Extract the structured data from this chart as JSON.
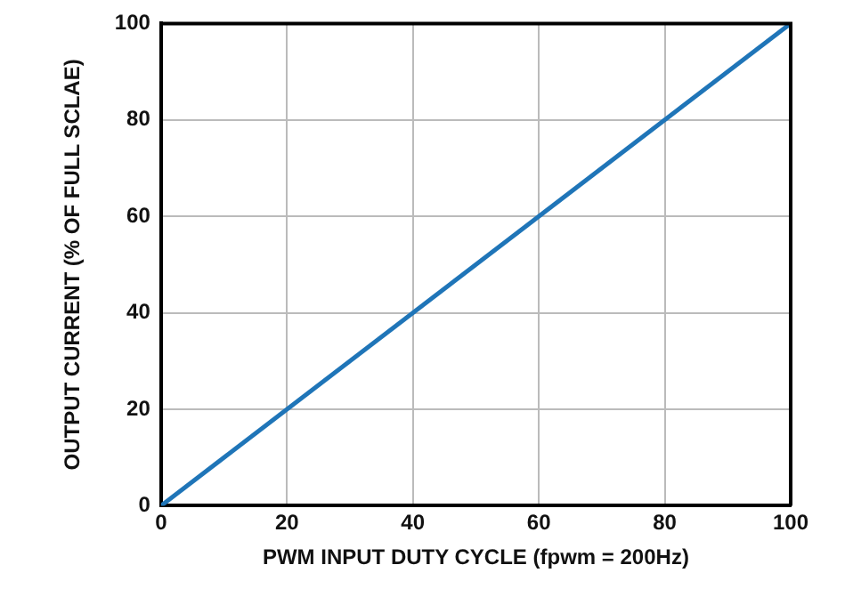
{
  "chart_data": {
    "type": "line",
    "xlabel": "PWM INPUT DUTY CYCLE (fpwm = 200Hz)",
    "ylabel": "OUTPUT CURRENT (% OF FULL SCLAE)",
    "x": [
      0,
      100
    ],
    "series": [
      {
        "color": "#1f75b8",
        "values": [
          0,
          100
        ]
      }
    ],
    "xlim": [
      0,
      100
    ],
    "xticks": [
      0,
      20,
      40,
      60,
      80,
      100
    ],
    "ylim": [
      0,
      100
    ],
    "yticks": [
      0,
      20,
      40,
      60,
      80,
      100
    ],
    "grid": true,
    "legend": false,
    "marker": "none",
    "line_style": "solid"
  }
}
